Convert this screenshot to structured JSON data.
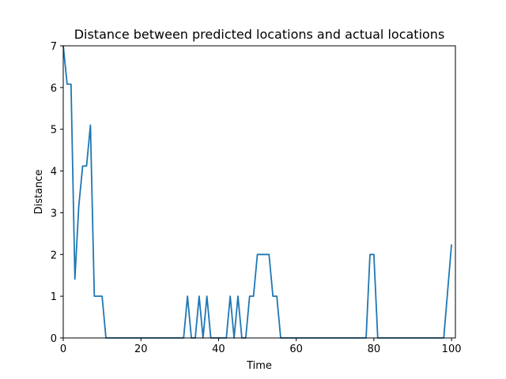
{
  "chart_data": {
    "type": "line",
    "title": "Distance between predicted locations and actual locations",
    "xlabel": "Time",
    "ylabel": "Distance",
    "xlim": [
      0,
      101
    ],
    "ylim": [
      0,
      7
    ],
    "xticks": [
      0,
      20,
      40,
      60,
      80,
      100
    ],
    "yticks": [
      0,
      1,
      2,
      3,
      4,
      5,
      6,
      7
    ],
    "grid": false,
    "legend": "none",
    "line_color": "#1f77b4",
    "series": [
      {
        "x": [
          0,
          1,
          2,
          3,
          4,
          5,
          6,
          7,
          8,
          9,
          10,
          11,
          12,
          13,
          14,
          15,
          16,
          17,
          18,
          19,
          20,
          21,
          22,
          23,
          24,
          25,
          26,
          27,
          28,
          29,
          30,
          31,
          32,
          33,
          34,
          35,
          36,
          37,
          38,
          39,
          40,
          41,
          42,
          43,
          44,
          45,
          46,
          47,
          48,
          49,
          50,
          51,
          52,
          53,
          54,
          55,
          56,
          57,
          58,
          59,
          60,
          61,
          62,
          63,
          64,
          65,
          66,
          67,
          68,
          69,
          70,
          71,
          72,
          73,
          74,
          75,
          76,
          77,
          78,
          79,
          80,
          81,
          82,
          83,
          84,
          85,
          86,
          87,
          88,
          89,
          90,
          91,
          92,
          93,
          94,
          95,
          96,
          97,
          98,
          99,
          100
        ],
        "values": [
          7.0,
          6.08,
          6.08,
          1.41,
          3.16,
          4.12,
          4.12,
          5.1,
          1.0,
          1.0,
          1.0,
          0,
          0,
          0,
          0,
          0,
          0,
          0,
          0,
          0,
          0,
          0,
          0,
          0,
          0,
          0,
          0,
          0,
          0,
          0,
          0,
          0,
          1,
          0,
          0,
          1,
          0,
          1,
          0,
          0,
          0,
          0,
          0,
          1,
          0,
          1,
          0,
          0,
          1,
          1,
          2,
          2,
          2,
          2,
          1,
          1,
          0,
          0,
          0,
          0,
          0,
          0,
          0,
          0,
          0,
          0,
          0,
          0,
          0,
          0,
          0,
          0,
          0,
          0,
          0,
          0,
          0,
          0,
          0,
          2,
          2,
          0,
          0,
          0,
          0,
          0,
          0,
          0,
          0,
          0,
          0,
          0,
          0,
          0,
          0,
          0,
          0,
          0,
          0,
          1.12,
          2.24
        ]
      }
    ]
  }
}
